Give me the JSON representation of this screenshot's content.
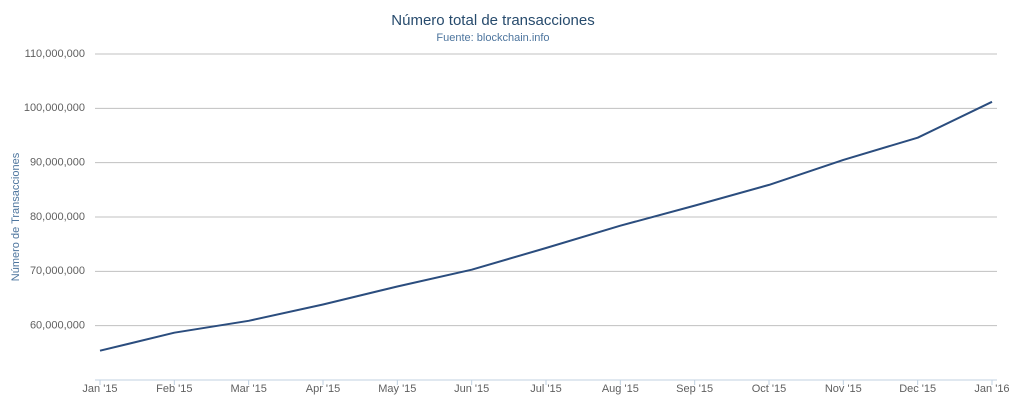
{
  "chart_data": {
    "type": "line",
    "title": "Número total de transacciones",
    "subtitle": "Fuente: blockchain.info",
    "y_label": "Número de Transacciones",
    "categories": [
      "Jan '15",
      "Feb '15",
      "Mar '15",
      "Apr '15",
      "May '15",
      "Jun '15",
      "Jul '15",
      "Aug '15",
      "Sep '15",
      "Oct '15",
      "Nov '15",
      "Dec '15",
      "Jan '16"
    ],
    "series": [
      {
        "name": "Número total de transacciones",
        "color": "#2b4d7e",
        "values": [
          55400000,
          58700000,
          60900000,
          63900000,
          67200000,
          70300000,
          74300000,
          78400000,
          82100000,
          85900000,
          90500000,
          94600000,
          101200000
        ]
      }
    ],
    "ylim": [
      50000000,
      110000000
    ],
    "yticks": [
      {
        "value": 60000000,
        "label": "60,000,000"
      },
      {
        "value": 70000000,
        "label": "70,000,000"
      },
      {
        "value": 80000000,
        "label": "80,000,000"
      },
      {
        "value": 90000000,
        "label": "90,000,000"
      },
      {
        "value": 100000000,
        "label": "100,000,000"
      },
      {
        "value": 110000000,
        "label": "110,000,000"
      }
    ],
    "grid": true
  }
}
